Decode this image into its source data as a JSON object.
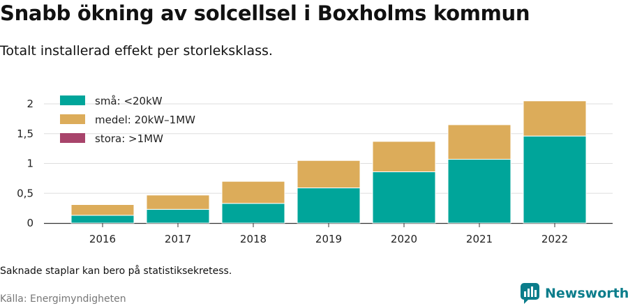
{
  "header": {
    "title": "Snabb ökning av solcellsel i Boxholms kommun",
    "subtitle": "Totalt installerad effekt per storleksklass."
  },
  "footer": {
    "note": "Saknade staplar kan bero på statistiksekretess.",
    "source": "Källa: Energimyndigheten",
    "brand": "Newsworthy"
  },
  "colors": {
    "small": "#00a59a",
    "medium": "#dcac5a",
    "large": "#a8446b",
    "brand": "#0b7d8b"
  },
  "chart_data": {
    "type": "bar",
    "stacked": true,
    "categories": [
      "2016",
      "2017",
      "2018",
      "2019",
      "2020",
      "2021",
      "2022"
    ],
    "series": [
      {
        "name": "små: <20kW",
        "values": [
          0.13,
          0.23,
          0.33,
          0.59,
          0.86,
          1.07,
          1.46
        ]
      },
      {
        "name": "medel: 20kW–1MW",
        "values": [
          0.18,
          0.24,
          0.37,
          0.46,
          0.51,
          0.58,
          0.59
        ]
      },
      {
        "name": "stora: >1MW",
        "values": [
          0,
          0,
          0,
          0,
          0,
          0,
          0
        ]
      }
    ],
    "yticks": [
      "0",
      "0,5",
      "1",
      "1,5",
      "2"
    ],
    "ylim": [
      0,
      2.1
    ],
    "grid": true,
    "legend": "top-left"
  }
}
